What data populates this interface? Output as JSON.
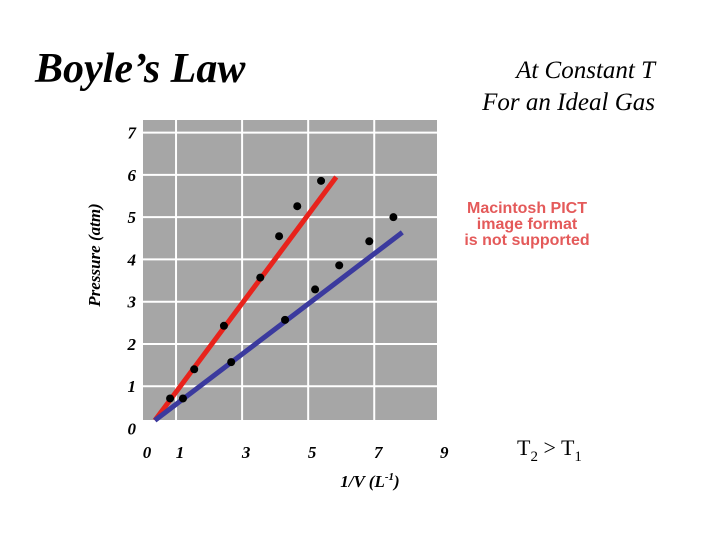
{
  "title": "Boyle’s Law",
  "subtitle": [
    "At Constant T",
    "For an Ideal Gas"
  ],
  "placeholder": [
    "Macintosh PICT",
    "image format",
    "is not supported"
  ],
  "relation": {
    "t": "T",
    "sub_a": "2",
    "op": " > T",
    "sub_b": "1"
  },
  "chart_data": {
    "type": "scatter",
    "ylabel": "Pressure (atm)",
    "xlabel": {
      "text": "1/V (L",
      "sup": "-1",
      "end": ")"
    },
    "x": [
      0.82,
      1.21,
      1.55,
      2.45,
      2.67,
      3.55,
      4.12,
      4.3,
      4.67,
      5.21,
      5.39,
      5.94,
      6.85,
      7.58
    ],
    "y": [
      0.71,
      0.71,
      1.4,
      2.43,
      1.57,
      3.57,
      4.55,
      2.57,
      5.26,
      3.29,
      5.86,
      3.86,
      4.43,
      5.0
    ],
    "color": "#000000",
    "lines": [
      {
        "color": "#e8231c",
        "x": [
          0.36,
          5.85
        ],
        "y": [
          0.19,
          5.95
        ]
      },
      {
        "color": "#3b3a9e",
        "x": [
          0.36,
          7.85
        ],
        "y": [
          0.19,
          4.64
        ]
      }
    ],
    "xlim": [
      0,
      8.9
    ],
    "ylim": [
      0.2,
      7.3
    ],
    "xticks": [
      0,
      1,
      3,
      5,
      7,
      9
    ],
    "yticks": [
      0,
      1,
      2,
      3,
      4,
      5,
      6,
      7
    ],
    "grid": true,
    "plot_color": "#a6a6a6",
    "grid_color": "#ffffff"
  }
}
